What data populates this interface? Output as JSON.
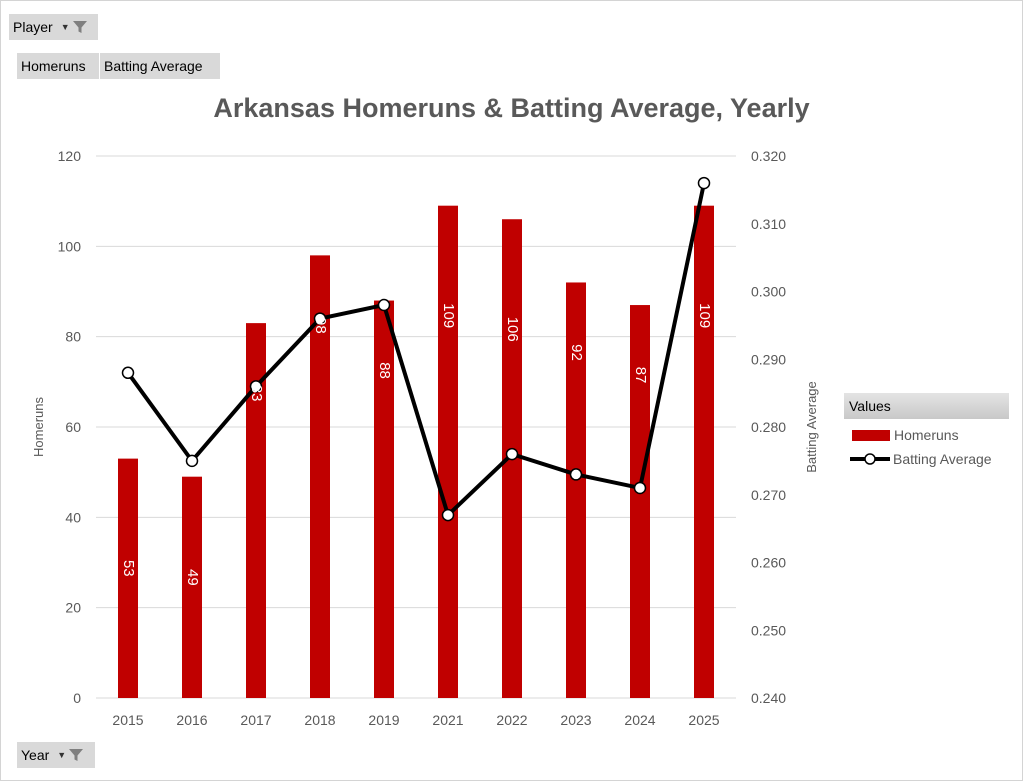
{
  "filters": {
    "player": {
      "label": "Player"
    },
    "year": {
      "label": "Year"
    }
  },
  "value_buttons": [
    "Homeruns",
    "Batting Average"
  ],
  "legend": {
    "header": "Values",
    "items": [
      {
        "label": "Homeruns",
        "color": "#c00000",
        "kind": "bar"
      },
      {
        "label": "Batting Average",
        "color": "#000000",
        "kind": "line-marker"
      }
    ]
  },
  "colors": {
    "bar": "#c00000",
    "line": "#000000",
    "marker_fill": "#ffffff",
    "gridline": "#d9d9d9",
    "axis_text": "#595959"
  },
  "chart_data": {
    "type": "bar",
    "title": "Arkansas Homeruns & Batting Average, Yearly",
    "categories": [
      "2015",
      "2016",
      "2017",
      "2018",
      "2019",
      "2021",
      "2022",
      "2023",
      "2024",
      "2025"
    ],
    "series": [
      {
        "name": "Homeruns",
        "type": "bar",
        "axis": "left",
        "values": [
          53,
          49,
          83,
          98,
          88,
          109,
          106,
          92,
          87,
          109
        ]
      },
      {
        "name": "Batting Average",
        "type": "line",
        "axis": "right",
        "values": [
          0.288,
          0.275,
          0.286,
          0.296,
          0.298,
          0.267,
          0.276,
          0.273,
          0.271,
          0.316
        ]
      }
    ],
    "ylabel": "Homeruns",
    "y2label": "Batting Average",
    "ylim": [
      0,
      120
    ],
    "yticks": [
      "0",
      "20",
      "40",
      "60",
      "80",
      "100",
      "120"
    ],
    "y2lim": [
      0.24,
      0.32
    ],
    "y2ticks": [
      "0.240",
      "0.250",
      "0.260",
      "0.270",
      "0.280",
      "0.290",
      "0.300",
      "0.310",
      "0.320"
    ],
    "grid": true,
    "legend_position": "right",
    "data_labels": "bar values, rotated vertical"
  }
}
